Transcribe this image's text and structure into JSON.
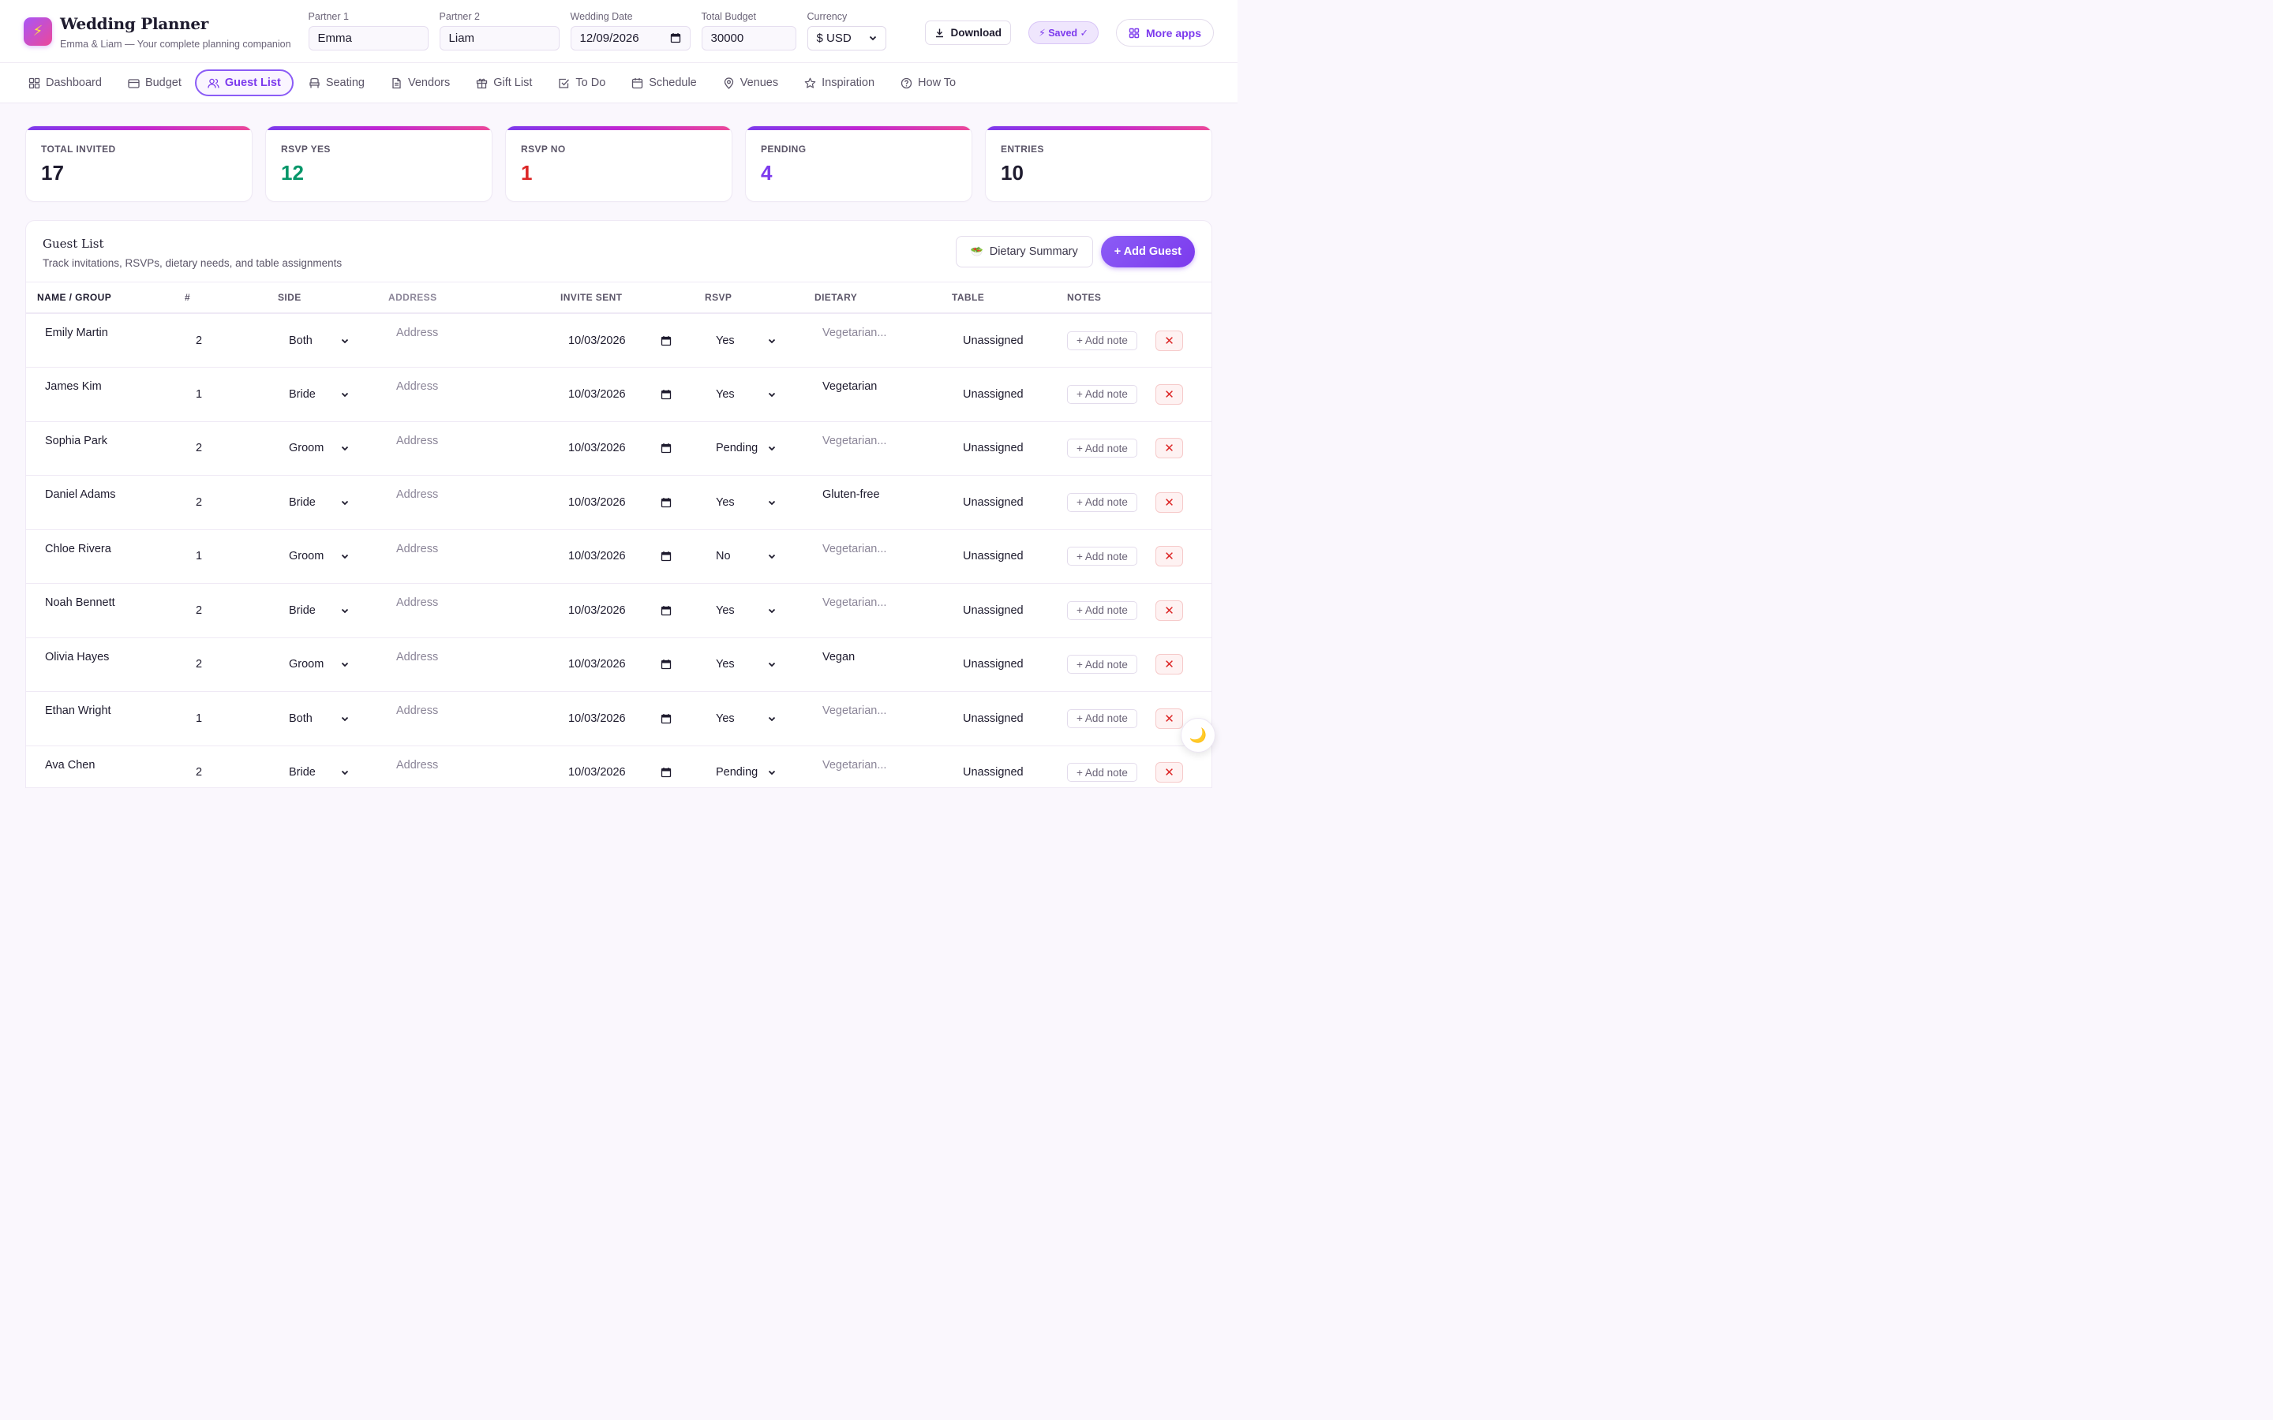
{
  "app": {
    "title": "Wedding Planner",
    "subtitle": "Emma & Liam — Your complete planning companion",
    "logo_icon": "lightning-icon"
  },
  "settings": {
    "partner1": {
      "label": "Partner 1",
      "value": "Emma"
    },
    "partner2": {
      "label": "Partner 2",
      "value": "Liam"
    },
    "date": {
      "label": "Wedding Date",
      "value": "12/09/2026"
    },
    "budget": {
      "label": "Total Budget",
      "value": "30000"
    },
    "currency": {
      "label": "Currency",
      "value": "$ USD"
    }
  },
  "header_actions": {
    "download": "Download",
    "saved": "⚡ Saved ✓",
    "more_apps": "More apps"
  },
  "tabs": [
    {
      "label": "Dashboard",
      "icon": "grid-icon"
    },
    {
      "label": "Budget",
      "icon": "wallet-icon"
    },
    {
      "label": "Guest List",
      "icon": "users-icon",
      "active": true
    },
    {
      "label": "Seating",
      "icon": "chair-icon"
    },
    {
      "label": "Vendors",
      "icon": "document-icon"
    },
    {
      "label": "Gift List",
      "icon": "gift-icon"
    },
    {
      "label": "To Do",
      "icon": "checkbox-icon"
    },
    {
      "label": "Schedule",
      "icon": "calendar-icon"
    },
    {
      "label": "Venues",
      "icon": "map-pin-icon"
    },
    {
      "label": "Inspiration",
      "icon": "star-icon"
    },
    {
      "label": "How To",
      "icon": "help-circle-icon"
    }
  ],
  "stats": [
    {
      "label": "Total Invited",
      "value": "17",
      "color": "#1e1b2e"
    },
    {
      "label": "RSVP Yes",
      "value": "12",
      "color": "#059669"
    },
    {
      "label": "RSVP No",
      "value": "1",
      "color": "#dc2626"
    },
    {
      "label": "Pending",
      "value": "4",
      "color": "#7c3aed"
    },
    {
      "label": "Entries",
      "value": "10",
      "color": "#1e1b2e"
    }
  ],
  "guest_panel": {
    "title": "Guest List",
    "subtitle": "Track invitations, RSVPs, dietary needs, and table assignments",
    "dietary_summary": "Dietary Summary",
    "add_guest": "+ Add Guest"
  },
  "table": {
    "columns": [
      "NAME / GROUP",
      "#",
      "SIDE",
      "ADDRESS",
      "INVITE SENT",
      "RSVP",
      "DIETARY",
      "TABLE",
      "NOTES"
    ],
    "address_placeholder": "Address",
    "dietary_placeholder": "Vegetarian...",
    "add_note": "+ Add note",
    "rows": [
      {
        "name": "Emily Martin",
        "count": "2",
        "side": "Both",
        "invite": "10/03/2026",
        "rsvp": "Yes",
        "dietary": "",
        "table": "Unassigned"
      },
      {
        "name": "James Kim",
        "count": "1",
        "side": "Bride",
        "invite": "10/03/2026",
        "rsvp": "Yes",
        "dietary": "Vegetarian",
        "table": "Unassigned"
      },
      {
        "name": "Sophia Park",
        "count": "2",
        "side": "Groom",
        "invite": "10/03/2026",
        "rsvp": "Pending",
        "dietary": "",
        "table": "Unassigned"
      },
      {
        "name": "Daniel Adams",
        "count": "2",
        "side": "Bride",
        "invite": "10/03/2026",
        "rsvp": "Yes",
        "dietary": "Gluten-free",
        "table": "Unassigned"
      },
      {
        "name": "Chloe Rivera",
        "count": "1",
        "side": "Groom",
        "invite": "10/03/2026",
        "rsvp": "No",
        "dietary": "",
        "table": "Unassigned"
      },
      {
        "name": "Noah Bennett",
        "count": "2",
        "side": "Bride",
        "invite": "10/03/2026",
        "rsvp": "Yes",
        "dietary": "",
        "table": "Unassigned"
      },
      {
        "name": "Olivia Hayes",
        "count": "2",
        "side": "Groom",
        "invite": "10/03/2026",
        "rsvp": "Yes",
        "dietary": "Vegan",
        "table": "Unassigned"
      },
      {
        "name": "Ethan Wright",
        "count": "1",
        "side": "Both",
        "invite": "10/03/2026",
        "rsvp": "Yes",
        "dietary": "",
        "table": "Unassigned"
      },
      {
        "name": "Ava Chen",
        "count": "2",
        "side": "Bride",
        "invite": "10/03/2026",
        "rsvp": "Pending",
        "dietary": "",
        "table": "Unassigned"
      }
    ]
  },
  "theme_toggle_icon": "moon-icon"
}
